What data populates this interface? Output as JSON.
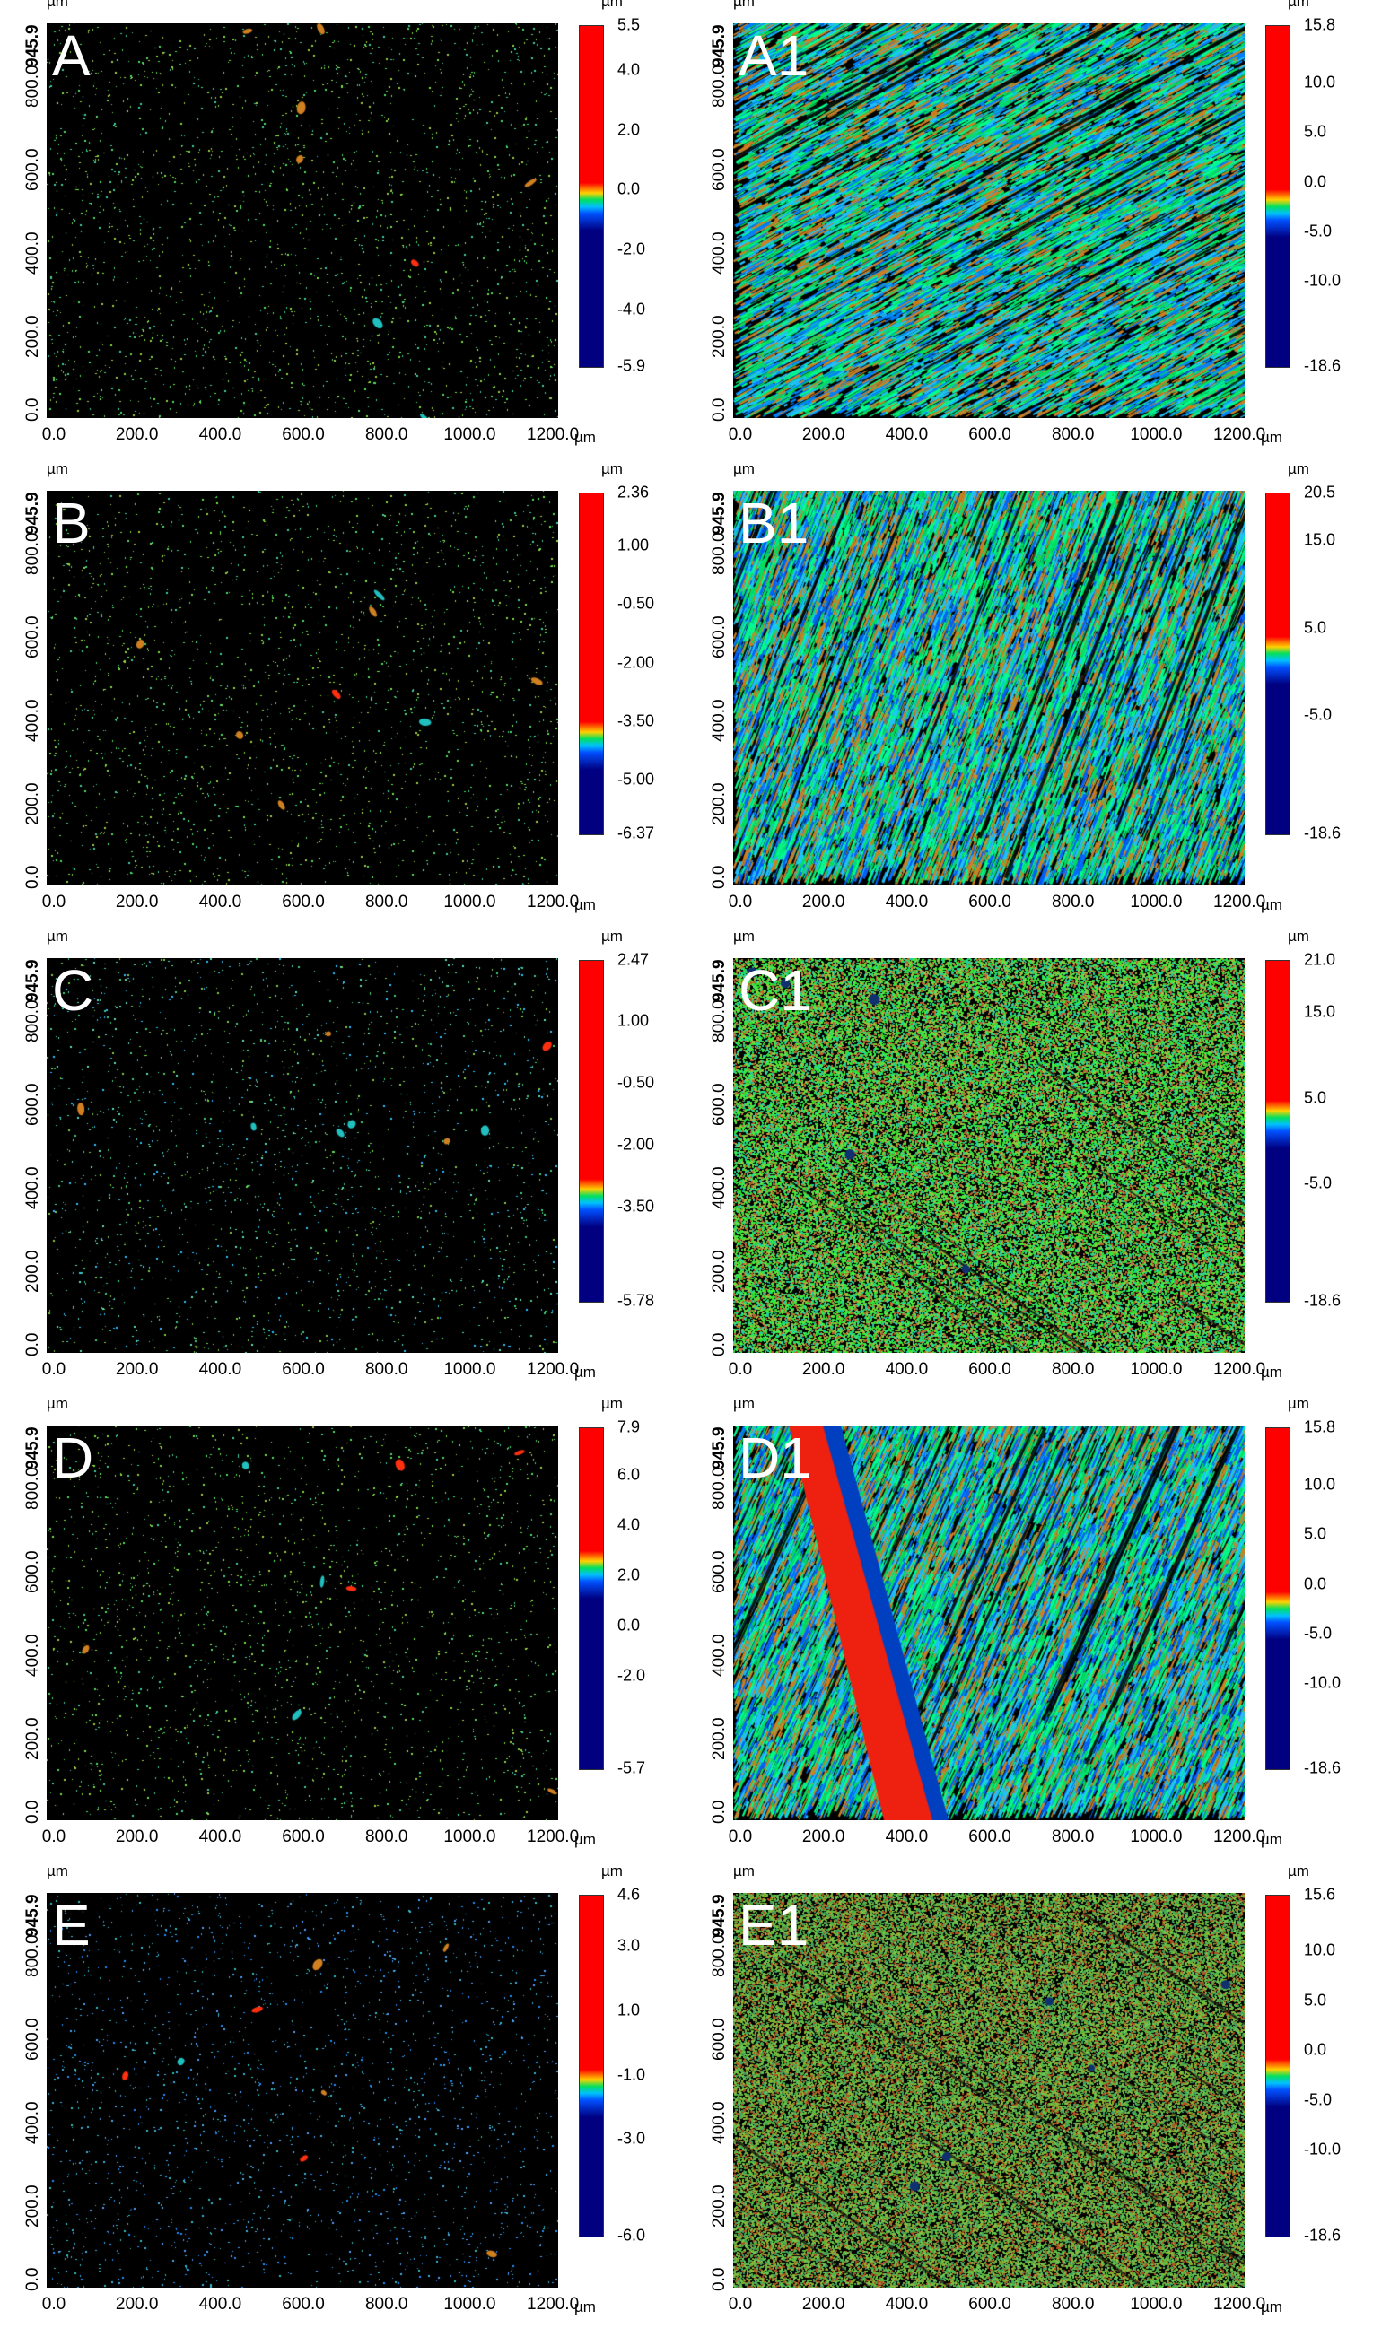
{
  "unit": "µm",
  "y_ticks": [
    "0.0",
    "200.0",
    "400.0",
    "600.0",
    "800.0",
    "945.9"
  ],
  "x_ticks": [
    "0.0",
    "200.0",
    "400.0",
    "600.0",
    "800.0",
    "1000.0",
    "1200.0"
  ],
  "x_range": [
    0,
    1230
  ],
  "y_range": [
    0,
    945.9
  ],
  "colors": {
    "low": "#000080",
    "mid_low": "#0050ff",
    "mid": "#00e060",
    "high": "#ff0000",
    "background": "#000000"
  },
  "panels": [
    {
      "label": "A",
      "colorbar": {
        "max": 5.5,
        "min": -5.9,
        "ticks": [
          "5.5",
          "4.0",
          "2.0",
          "0.0",
          "-2.0",
          "-4.0",
          "-5.9"
        ],
        "tick_values": [
          5.5,
          4.0,
          2.0,
          0.0,
          -2.0,
          -4.0,
          -5.9
        ],
        "zero_fraction": 0.48
      }
    },
    {
      "label": "A1",
      "colorbar": {
        "max": 15.8,
        "min": -18.6,
        "ticks": [
          "15.8",
          "10.0",
          "5.0",
          "0.0",
          "-5.0",
          "-10.0",
          "-18.6"
        ],
        "tick_values": [
          15.8,
          10.0,
          5.0,
          0.0,
          -5.0,
          -10.0,
          -18.6
        ],
        "zero_fraction": 0.46
      }
    },
    {
      "label": "B",
      "colorbar": {
        "max": 2.36,
        "min": -6.37,
        "ticks": [
          "2.36",
          "1.00",
          "-0.50",
          "-2.00",
          "-3.50",
          "-5.00",
          "-6.37"
        ],
        "tick_values": [
          2.36,
          1.0,
          -0.5,
          -2.0,
          -3.5,
          -5.0,
          -6.37
        ],
        "zero_fraction": 0.27
      }
    },
    {
      "label": "B1",
      "colorbar": {
        "max": 20.5,
        "min": -18.6,
        "ticks": [
          "20.5",
          "15.0",
          "5.0",
          "-5.0",
          "-18.6"
        ],
        "tick_values": [
          20.5,
          15.0,
          5.0,
          -5.0,
          -18.6
        ],
        "zero_fraction": 0.52
      }
    },
    {
      "label": "C",
      "colorbar": {
        "max": 2.47,
        "min": -5.78,
        "ticks": [
          "2.47",
          "1.00",
          "-0.50",
          "-2.00",
          "-3.50",
          "-5.78"
        ],
        "tick_values": [
          2.47,
          1.0,
          -0.5,
          -2.0,
          -3.5,
          -5.78
        ],
        "zero_fraction": 0.3
      }
    },
    {
      "label": "C1",
      "colorbar": {
        "max": 21.0,
        "min": -18.6,
        "ticks": [
          "21.0",
          "15.0",
          "5.0",
          "-5.0",
          "-18.6"
        ],
        "tick_values": [
          21.0,
          15.0,
          5.0,
          -5.0,
          -18.6
        ],
        "zero_fraction": 0.53
      }
    },
    {
      "label": "D",
      "colorbar": {
        "max": 7.9,
        "min": -5.7,
        "ticks": [
          "7.9",
          "6.0",
          "4.0",
          "2.0",
          "0.0",
          "-2.0",
          "-5.7"
        ],
        "tick_values": [
          7.9,
          6.0,
          4.0,
          2.0,
          0.0,
          -2.0,
          -5.7
        ],
        "zero_fraction": 0.58
      }
    },
    {
      "label": "D1",
      "colorbar": {
        "max": 15.8,
        "min": -18.6,
        "ticks": [
          "15.8",
          "10.0",
          "5.0",
          "0.0",
          "-5.0",
          "-10.0",
          "-18.6"
        ],
        "tick_values": [
          15.8,
          10.0,
          5.0,
          0.0,
          -5.0,
          -10.0,
          -18.6
        ],
        "zero_fraction": 0.46
      }
    },
    {
      "label": "E",
      "colorbar": {
        "max": 4.6,
        "min": -6.0,
        "ticks": [
          "4.6",
          "3.0",
          "1.0",
          "-1.0",
          "-3.0",
          "-6.0"
        ],
        "tick_values": [
          4.6,
          3.0,
          1.0,
          -1.0,
          -3.0,
          -6.0
        ],
        "zero_fraction": 0.43
      }
    },
    {
      "label": "E1",
      "colorbar": {
        "max": 15.6,
        "min": -18.6,
        "ticks": [
          "15.6",
          "10.0",
          "5.0",
          "0.0",
          "-5.0",
          "-10.0",
          "-18.6"
        ],
        "tick_values": [
          15.6,
          10.0,
          5.0,
          0.0,
          -5.0,
          -10.0,
          -18.6
        ],
        "zero_fraction": 0.46
      }
    }
  ]
}
